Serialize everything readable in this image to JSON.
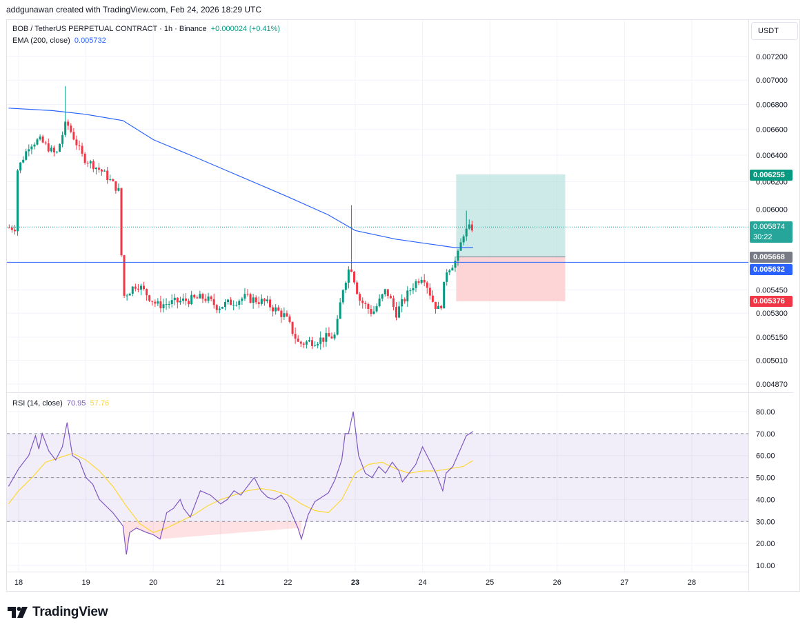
{
  "header": {
    "credit": "addgunawan created with TradingView.com, Feb 24, 2026 18:29 UTC"
  },
  "legend": {
    "symbol": "BOB / TetherUS PERPETUAL CONTRACT · 1h · Binance",
    "change": "+0.000024 (+0.41%)",
    "ema_label": "EMA (200, close)",
    "ema_value": "0.005732",
    "rsi_label": "RSI (14, close)",
    "rsi_value": "70.95",
    "rsi_ma_value": "57.76"
  },
  "currency": "USDT",
  "price_tags": {
    "target": "0.006255",
    "last": "0.005874",
    "countdown": "30:22",
    "entry": "0.005668",
    "line": "0.005632",
    "stop": "0.005376"
  },
  "colors": {
    "up": "#089981",
    "down": "#f23645",
    "ema": "#2962ff",
    "rsi": "#7e57c2",
    "rsi_ma": "#fdd835",
    "target_zone": "#b2dfdb",
    "stop_zone": "#fccbcd",
    "entry_tag": "#787b86",
    "line_tag": "#2962ff"
  },
  "brand": "TradingView",
  "chart_data": [
    {
      "type": "candlestick",
      "interval": "1h",
      "x_ticks": [
        "18",
        "19",
        "20",
        "21",
        "22",
        "23",
        "24",
        "25",
        "26",
        "27",
        "28"
      ],
      "y_ticks": [
        "0.007200",
        "0.007000",
        "0.006800",
        "0.006600",
        "0.006400",
        "0.006200",
        "0.006000",
        "0.005450",
        "0.005300",
        "0.005150",
        "0.005010",
        "0.004870"
      ],
      "path_waypoints": [
        [
          18.0,
          0.00626
        ],
        [
          18.2,
          0.00648
        ],
        [
          18.35,
          0.00652
        ],
        [
          18.6,
          0.0064
        ],
        [
          18.75,
          0.00666
        ],
        [
          19.0,
          0.00638
        ],
        [
          19.3,
          0.00627
        ],
        [
          19.55,
          0.00612
        ],
        [
          19.58,
          0.0054
        ],
        [
          19.8,
          0.00549
        ],
        [
          20.1,
          0.00535
        ],
        [
          20.5,
          0.00538
        ],
        [
          20.8,
          0.0054
        ],
        [
          21.0,
          0.00534
        ],
        [
          21.4,
          0.0054
        ],
        [
          21.7,
          0.00537
        ],
        [
          22.0,
          0.00528
        ],
        [
          22.2,
          0.00511
        ],
        [
          22.45,
          0.00513
        ],
        [
          22.75,
          0.00516
        ],
        [
          22.85,
          0.00545
        ],
        [
          22.97,
          0.00562
        ],
        [
          23.1,
          0.00539
        ],
        [
          23.3,
          0.0053
        ],
        [
          23.5,
          0.00545
        ],
        [
          23.65,
          0.0053
        ],
        [
          23.9,
          0.00548
        ],
        [
          24.05,
          0.00555
        ],
        [
          24.2,
          0.00537
        ],
        [
          24.3,
          0.00531
        ],
        [
          24.4,
          0.00558
        ],
        [
          24.55,
          0.00565
        ],
        [
          24.65,
          0.00583
        ],
        [
          24.75,
          0.00587
        ]
      ],
      "ema200": [
        [
          17.85,
          0.00677
        ],
        [
          18.5,
          0.00675
        ],
        [
          19.0,
          0.00672
        ],
        [
          19.55,
          0.00667
        ],
        [
          20.0,
          0.00652
        ],
        [
          20.6,
          0.00639
        ],
        [
          21.2,
          0.00626
        ],
        [
          22.0,
          0.00609
        ],
        [
          22.6,
          0.00596
        ],
        [
          23.0,
          0.00585
        ],
        [
          23.6,
          0.00579
        ],
        [
          24.2,
          0.00575
        ],
        [
          24.5,
          0.00573
        ],
        [
          24.75,
          0.005732
        ]
      ],
      "horizontal_line": 0.005632,
      "last_price": 0.005874,
      "position": {
        "type": "long",
        "x_start": 24.5,
        "x_end": 26.12,
        "entry": 0.005668,
        "target": 0.006255,
        "stop": 0.005376
      }
    },
    {
      "type": "line",
      "title": "RSI (14, close)",
      "y_ticks": [
        "80.00",
        "70.00",
        "60.00",
        "50.00",
        "40.00",
        "30.00",
        "20.00",
        "10.00"
      ],
      "bands": {
        "upper": 70,
        "middle": 50,
        "lower": 30
      },
      "series": [
        {
          "name": "RSI",
          "points": [
            [
              17.85,
              46
            ],
            [
              18.0,
              54
            ],
            [
              18.15,
              60
            ],
            [
              18.25,
              69
            ],
            [
              18.3,
              63
            ],
            [
              18.35,
              70
            ],
            [
              18.45,
              62
            ],
            [
              18.55,
              58
            ],
            [
              18.65,
              64
            ],
            [
              18.72,
              75
            ],
            [
              18.8,
              60
            ],
            [
              18.9,
              58
            ],
            [
              19.0,
              50
            ],
            [
              19.1,
              47
            ],
            [
              19.2,
              40
            ],
            [
              19.3,
              37
            ],
            [
              19.4,
              34
            ],
            [
              19.5,
              30
            ],
            [
              19.55,
              28
            ],
            [
              19.6,
              15
            ],
            [
              19.65,
              25
            ],
            [
              19.75,
              27
            ],
            [
              19.9,
              25
            ],
            [
              20.0,
              24
            ],
            [
              20.1,
              22
            ],
            [
              20.2,
              34
            ],
            [
              20.3,
              36
            ],
            [
              20.4,
              40
            ],
            [
              20.45,
              36
            ],
            [
              20.55,
              32
            ],
            [
              20.7,
              44
            ],
            [
              20.85,
              42
            ],
            [
              21.0,
              38
            ],
            [
              21.1,
              40
            ],
            [
              21.2,
              44
            ],
            [
              21.3,
              42
            ],
            [
              21.4,
              46
            ],
            [
              21.45,
              48
            ],
            [
              21.5,
              50
            ],
            [
              21.6,
              44
            ],
            [
              21.7,
              41
            ],
            [
              21.8,
              40
            ],
            [
              21.9,
              42
            ],
            [
              22.0,
              38
            ],
            [
              22.05,
              34
            ],
            [
              22.15,
              27
            ],
            [
              22.2,
              22
            ],
            [
              22.3,
              33
            ],
            [
              22.4,
              39
            ],
            [
              22.5,
              41
            ],
            [
              22.6,
              43
            ],
            [
              22.7,
              49
            ],
            [
              22.8,
              58
            ],
            [
              22.85,
              70
            ],
            [
              22.9,
              70
            ],
            [
              22.97,
              80
            ],
            [
              23.05,
              60
            ],
            [
              23.15,
              52
            ],
            [
              23.25,
              50
            ],
            [
              23.35,
              55
            ],
            [
              23.45,
              52
            ],
            [
              23.55,
              57
            ],
            [
              23.65,
              53
            ],
            [
              23.7,
              48
            ],
            [
              23.8,
              52
            ],
            [
              23.9,
              56
            ],
            [
              24.0,
              64
            ],
            [
              24.1,
              58
            ],
            [
              24.2,
              52
            ],
            [
              24.3,
              44
            ],
            [
              24.35,
              52
            ],
            [
              24.45,
              55
            ],
            [
              24.55,
              62
            ],
            [
              24.65,
              69
            ],
            [
              24.75,
              70.95
            ]
          ]
        },
        {
          "name": "RSI-based MA",
          "points": [
            [
              17.85,
              38
            ],
            [
              18.0,
              44
            ],
            [
              18.2,
              50
            ],
            [
              18.4,
              57
            ],
            [
              18.6,
              59
            ],
            [
              18.8,
              61
            ],
            [
              19.0,
              58
            ],
            [
              19.2,
              53
            ],
            [
              19.4,
              46
            ],
            [
              19.6,
              37
            ],
            [
              19.8,
              29
            ],
            [
              20.0,
              25
            ],
            [
              20.2,
              27
            ],
            [
              20.4,
              30
            ],
            [
              20.6,
              33
            ],
            [
              20.8,
              37
            ],
            [
              21.0,
              40
            ],
            [
              21.2,
              42
            ],
            [
              21.4,
              44
            ],
            [
              21.6,
              45
            ],
            [
              21.8,
              44
            ],
            [
              22.0,
              42
            ],
            [
              22.2,
              38
            ],
            [
              22.4,
              35
            ],
            [
              22.6,
              34
            ],
            [
              22.8,
              40
            ],
            [
              23.0,
              52
            ],
            [
              23.2,
              56
            ],
            [
              23.4,
              57
            ],
            [
              23.6,
              54
            ],
            [
              23.8,
              52
            ],
            [
              24.0,
              53
            ],
            [
              24.2,
              53
            ],
            [
              24.4,
              54
            ],
            [
              24.6,
              55
            ],
            [
              24.75,
              57.76
            ]
          ]
        }
      ]
    }
  ]
}
